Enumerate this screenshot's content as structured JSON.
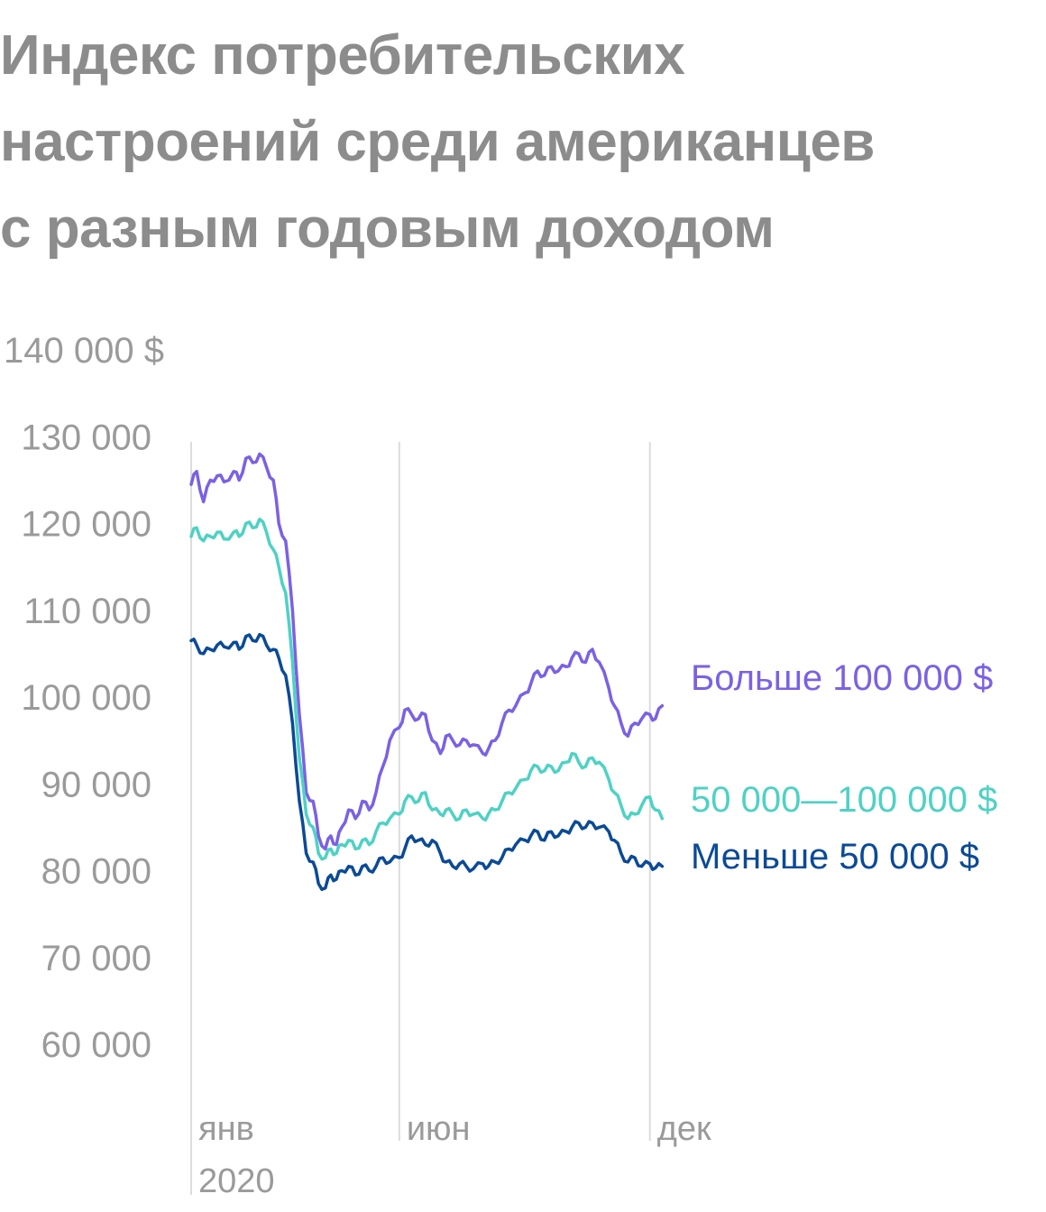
{
  "chart_data": {
    "type": "line",
    "title_lines": [
      "Индекс потребительских",
      "настроений среди американцев",
      "с разным годовым доходом"
    ],
    "y_ticks": [
      {
        "value": 140000,
        "label": "140 000 $"
      },
      {
        "value": 130000,
        "label": "130 000"
      },
      {
        "value": 120000,
        "label": "120 000"
      },
      {
        "value": 110000,
        "label": "110 000"
      },
      {
        "value": 100000,
        "label": "100 000"
      },
      {
        "value": 90000,
        "label": "90 000"
      },
      {
        "value": 80000,
        "label": "80 000"
      },
      {
        "value": 70000,
        "label": "70 000"
      },
      {
        "value": 60000,
        "label": "60 000"
      }
    ],
    "ylim": [
      60000,
      140000
    ],
    "x_range": [
      "2020-01-01",
      "2020-12-15"
    ],
    "x_ticks": [
      {
        "date": "2020-01-01",
        "label": "янв",
        "sublabel": "2020"
      },
      {
        "date": "2020-06-01",
        "label": "июн"
      },
      {
        "date": "2020-12-01",
        "label": "дек"
      }
    ],
    "series": [
      {
        "name": "Больше 100 000 $",
        "color": "#7b61e3",
        "points": [
          [
            "2020-01-01",
            124.5
          ],
          [
            "2020-01-05",
            126.0
          ],
          [
            "2020-01-10",
            122.5
          ],
          [
            "2020-01-15",
            125.0
          ],
          [
            "2020-01-20",
            125.5
          ],
          [
            "2020-01-25",
            124.8
          ],
          [
            "2020-02-01",
            126.0
          ],
          [
            "2020-02-05",
            125.0
          ],
          [
            "2020-02-10",
            127.5
          ],
          [
            "2020-02-15",
            127.0
          ],
          [
            "2020-02-20",
            128.0
          ],
          [
            "2020-02-25",
            126.5
          ],
          [
            "2020-03-01",
            125.0
          ],
          [
            "2020-03-05",
            120.0
          ],
          [
            "2020-03-10",
            118.0
          ],
          [
            "2020-03-15",
            110.0
          ],
          [
            "2020-03-20",
            98.0
          ],
          [
            "2020-03-25",
            89.0
          ],
          [
            "2020-03-30",
            88.0
          ],
          [
            "2020-04-03",
            84.0
          ],
          [
            "2020-04-08",
            82.5
          ],
          [
            "2020-04-12",
            84.0
          ],
          [
            "2020-04-16",
            83.0
          ],
          [
            "2020-04-20",
            85.0
          ],
          [
            "2020-04-25",
            87.0
          ],
          [
            "2020-04-30",
            86.0
          ],
          [
            "2020-05-05",
            88.0
          ],
          [
            "2020-05-10",
            87.0
          ],
          [
            "2020-05-15",
            89.0
          ],
          [
            "2020-05-20",
            92.0
          ],
          [
            "2020-05-25",
            95.0
          ],
          [
            "2020-06-01",
            96.5
          ],
          [
            "2020-06-05",
            98.5
          ],
          [
            "2020-06-10",
            98.0
          ],
          [
            "2020-06-15",
            97.5
          ],
          [
            "2020-06-20",
            98.0
          ],
          [
            "2020-06-25",
            95.0
          ],
          [
            "2020-07-01",
            93.5
          ],
          [
            "2020-07-05",
            95.5
          ],
          [
            "2020-07-10",
            95.0
          ],
          [
            "2020-07-15",
            94.5
          ],
          [
            "2020-07-20",
            95.0
          ],
          [
            "2020-07-25",
            94.5
          ],
          [
            "2020-08-01",
            93.5
          ],
          [
            "2020-08-05",
            94.0
          ],
          [
            "2020-08-10",
            95.0
          ],
          [
            "2020-08-15",
            97.0
          ],
          [
            "2020-08-20",
            98.5
          ],
          [
            "2020-08-25",
            99.0
          ],
          [
            "2020-09-01",
            100.5
          ],
          [
            "2020-09-05",
            101.5
          ],
          [
            "2020-09-10",
            103.0
          ],
          [
            "2020-09-15",
            102.5
          ],
          [
            "2020-09-20",
            103.5
          ],
          [
            "2020-09-25",
            103.0
          ],
          [
            "2020-10-01",
            103.5
          ],
          [
            "2020-10-05",
            104.5
          ],
          [
            "2020-10-10",
            105.0
          ],
          [
            "2020-10-15",
            104.0
          ],
          [
            "2020-10-20",
            105.5
          ],
          [
            "2020-10-25",
            104.0
          ],
          [
            "2020-11-01",
            101.0
          ],
          [
            "2020-11-05",
            99.0
          ],
          [
            "2020-11-10",
            97.0
          ],
          [
            "2020-11-15",
            95.5
          ],
          [
            "2020-11-20",
            97.0
          ],
          [
            "2020-11-25",
            97.5
          ],
          [
            "2020-12-01",
            98.0
          ],
          [
            "2020-12-05",
            97.5
          ],
          [
            "2020-12-10",
            99.0
          ]
        ]
      },
      {
        "name": "50 000—100 000 $",
        "color": "#4fd1c5",
        "points": [
          [
            "2020-01-01",
            118.5
          ],
          [
            "2020-01-05",
            119.5
          ],
          [
            "2020-01-10",
            118.0
          ],
          [
            "2020-01-15",
            118.5
          ],
          [
            "2020-01-20",
            119.0
          ],
          [
            "2020-01-25",
            118.2
          ],
          [
            "2020-02-01",
            119.0
          ],
          [
            "2020-02-05",
            118.5
          ],
          [
            "2020-02-10",
            120.0
          ],
          [
            "2020-02-15",
            119.5
          ],
          [
            "2020-02-20",
            120.5
          ],
          [
            "2020-02-25",
            119.0
          ],
          [
            "2020-03-01",
            117.0
          ],
          [
            "2020-03-05",
            115.0
          ],
          [
            "2020-03-10",
            112.0
          ],
          [
            "2020-03-15",
            104.0
          ],
          [
            "2020-03-20",
            93.0
          ],
          [
            "2020-03-25",
            86.5
          ],
          [
            "2020-03-30",
            85.0
          ],
          [
            "2020-04-03",
            82.0
          ],
          [
            "2020-04-08",
            81.5
          ],
          [
            "2020-04-12",
            82.5
          ],
          [
            "2020-04-16",
            82.0
          ],
          [
            "2020-04-20",
            83.0
          ],
          [
            "2020-04-25",
            83.5
          ],
          [
            "2020-04-30",
            82.5
          ],
          [
            "2020-05-05",
            83.5
          ],
          [
            "2020-05-10",
            83.0
          ],
          [
            "2020-05-15",
            84.5
          ],
          [
            "2020-05-20",
            85.5
          ],
          [
            "2020-05-25",
            86.0
          ],
          [
            "2020-06-01",
            86.5
          ],
          [
            "2020-06-05",
            88.0
          ],
          [
            "2020-06-10",
            88.5
          ],
          [
            "2020-06-15",
            88.0
          ],
          [
            "2020-06-20",
            89.0
          ],
          [
            "2020-06-25",
            87.0
          ],
          [
            "2020-07-01",
            86.5
          ],
          [
            "2020-07-05",
            87.0
          ],
          [
            "2020-07-10",
            86.5
          ],
          [
            "2020-07-15",
            86.0
          ],
          [
            "2020-07-20",
            87.0
          ],
          [
            "2020-07-25",
            86.5
          ],
          [
            "2020-08-01",
            86.0
          ],
          [
            "2020-08-05",
            86.5
          ],
          [
            "2020-08-10",
            87.0
          ],
          [
            "2020-08-15",
            88.0
          ],
          [
            "2020-08-20",
            89.0
          ],
          [
            "2020-08-25",
            89.5
          ],
          [
            "2020-09-01",
            90.5
          ],
          [
            "2020-09-05",
            91.5
          ],
          [
            "2020-09-10",
            92.0
          ],
          [
            "2020-09-15",
            91.5
          ],
          [
            "2020-09-20",
            92.0
          ],
          [
            "2020-09-25",
            91.5
          ],
          [
            "2020-10-01",
            92.5
          ],
          [
            "2020-10-05",
            93.5
          ],
          [
            "2020-10-10",
            92.5
          ],
          [
            "2020-10-15",
            92.0
          ],
          [
            "2020-10-20",
            93.0
          ],
          [
            "2020-10-25",
            92.5
          ],
          [
            "2020-11-01",
            90.5
          ],
          [
            "2020-11-05",
            89.0
          ],
          [
            "2020-11-10",
            87.5
          ],
          [
            "2020-11-15",
            86.0
          ],
          [
            "2020-11-20",
            86.5
          ],
          [
            "2020-11-25",
            87.5
          ],
          [
            "2020-12-01",
            88.5
          ],
          [
            "2020-12-05",
            87.0
          ],
          [
            "2020-12-10",
            86.0
          ]
        ]
      },
      {
        "name": "Меньше 50 000 $",
        "color": "#0b4a96",
        "points": [
          [
            "2020-01-01",
            106.5
          ],
          [
            "2020-01-05",
            106.0
          ],
          [
            "2020-01-10",
            105.0
          ],
          [
            "2020-01-15",
            105.5
          ],
          [
            "2020-01-20",
            106.0
          ],
          [
            "2020-01-25",
            105.8
          ],
          [
            "2020-02-01",
            106.3
          ],
          [
            "2020-02-05",
            105.5
          ],
          [
            "2020-02-10",
            107.0
          ],
          [
            "2020-02-15",
            106.5
          ],
          [
            "2020-02-20",
            107.2
          ],
          [
            "2020-02-25",
            106.0
          ],
          [
            "2020-03-01",
            105.5
          ],
          [
            "2020-03-05",
            104.5
          ],
          [
            "2020-03-10",
            102.5
          ],
          [
            "2020-03-15",
            97.0
          ],
          [
            "2020-03-20",
            88.0
          ],
          [
            "2020-03-25",
            82.0
          ],
          [
            "2020-03-30",
            81.0
          ],
          [
            "2020-04-03",
            78.5
          ],
          [
            "2020-04-08",
            78.0
          ],
          [
            "2020-04-12",
            79.5
          ],
          [
            "2020-04-16",
            79.0
          ],
          [
            "2020-04-20",
            80.0
          ],
          [
            "2020-04-25",
            80.5
          ],
          [
            "2020-04-30",
            79.5
          ],
          [
            "2020-05-05",
            80.5
          ],
          [
            "2020-05-10",
            80.0
          ],
          [
            "2020-05-15",
            80.5
          ],
          [
            "2020-05-20",
            81.5
          ],
          [
            "2020-05-25",
            81.0
          ],
          [
            "2020-06-01",
            81.5
          ],
          [
            "2020-06-05",
            82.5
          ],
          [
            "2020-06-10",
            84.0
          ],
          [
            "2020-06-15",
            83.5
          ],
          [
            "2020-06-20",
            83.0
          ],
          [
            "2020-06-25",
            83.5
          ],
          [
            "2020-07-01",
            82.0
          ],
          [
            "2020-07-05",
            81.0
          ],
          [
            "2020-07-10",
            80.5
          ],
          [
            "2020-07-15",
            80.8
          ],
          [
            "2020-07-20",
            80.5
          ],
          [
            "2020-07-25",
            80.2
          ],
          [
            "2020-08-01",
            80.8
          ],
          [
            "2020-08-05",
            80.5
          ],
          [
            "2020-08-10",
            81.0
          ],
          [
            "2020-08-15",
            81.5
          ],
          [
            "2020-08-20",
            82.5
          ],
          [
            "2020-08-25",
            83.0
          ],
          [
            "2020-09-01",
            83.5
          ],
          [
            "2020-09-05",
            84.0
          ],
          [
            "2020-09-10",
            84.5
          ],
          [
            "2020-09-15",
            83.5
          ],
          [
            "2020-09-20",
            84.5
          ],
          [
            "2020-09-25",
            84.0
          ],
          [
            "2020-10-01",
            84.5
          ],
          [
            "2020-10-05",
            85.0
          ],
          [
            "2020-10-10",
            85.5
          ],
          [
            "2020-10-15",
            85.0
          ],
          [
            "2020-10-20",
            85.5
          ],
          [
            "2020-10-25",
            85.0
          ],
          [
            "2020-11-01",
            84.5
          ],
          [
            "2020-11-05",
            83.5
          ],
          [
            "2020-11-10",
            82.0
          ],
          [
            "2020-11-15",
            81.0
          ],
          [
            "2020-11-20",
            81.5
          ],
          [
            "2020-11-25",
            80.5
          ],
          [
            "2020-12-01",
            80.8
          ],
          [
            "2020-12-05",
            80.3
          ],
          [
            "2020-12-10",
            80.5
          ]
        ]
      }
    ],
    "value_scale_note": "",
    "grid": false,
    "legend": "direct labels at line ends"
  }
}
